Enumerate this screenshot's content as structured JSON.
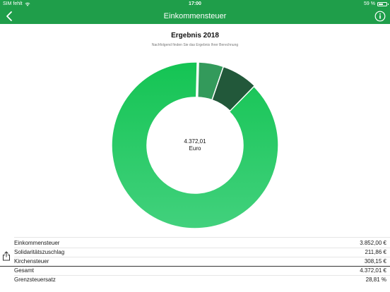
{
  "status_bar": {
    "carrier": "SIM fehlt",
    "time": "17:00",
    "battery_text": "59 %",
    "battery_level": 0.59
  },
  "nav": {
    "title": "Einkommensteuer",
    "back_icon": "chevron-left-icon",
    "info_icon": "info-icon"
  },
  "result": {
    "title": "Ergebnis 2018",
    "subtitle": "Nachfolgend finden Sie das Ergebnis Ihrer Berechnung"
  },
  "chart_data": {
    "type": "pie",
    "center_value": "4.372,01",
    "center_unit": "Euro",
    "values": [
      3852.0,
      211.86,
      308.15
    ],
    "colors": [
      "#2bc764",
      "#339a5b",
      "#22583a"
    ]
  },
  "table": {
    "rows": [
      {
        "label": "Einkommensteuer",
        "value": "3.852,00 €"
      },
      {
        "label": "Solidaritätszuschlag",
        "value": "211,86 €"
      },
      {
        "label": "Kirchensteuer",
        "value": "308,15 €"
      },
      {
        "label": "Gesamt",
        "value": "4.372,01 €"
      },
      {
        "label": "Grenzsteuersatz",
        "value": "28,81 %"
      }
    ]
  },
  "colors": {
    "brand": "#1f9e4a"
  }
}
